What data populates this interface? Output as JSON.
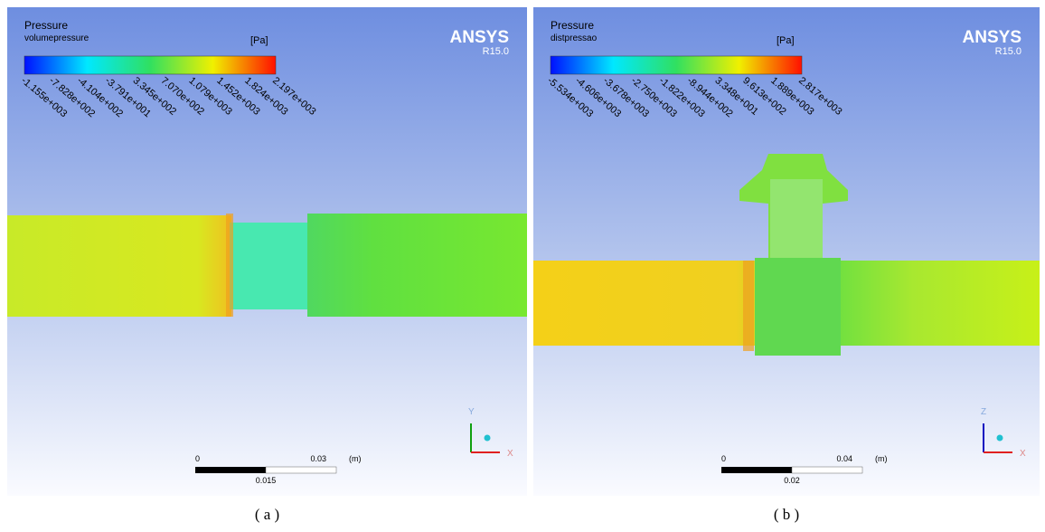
{
  "panels": [
    {
      "legend": {
        "title": "Pressure",
        "variable": "volumepressure",
        "unit": "[Pa]",
        "ticks": [
          "-1.155e+003",
          "-7.828e+002",
          "-4.104e+002",
          "-3.791e+001",
          "3.345e+002",
          "7.070e+002",
          "1.079e+003",
          "1.452e+003",
          "1.824e+003",
          "2.197e+003"
        ]
      },
      "brand": "ANSYS",
      "version": "R15.0",
      "scale": {
        "start": "0",
        "end": "0.03",
        "unit": "(m)",
        "mid": "0.015"
      },
      "axes": {
        "up": "Y",
        "right": "X"
      },
      "caption": "( a )"
    },
    {
      "legend": {
        "title": "Pressure",
        "variable": "distpressao",
        "unit": "[Pa]",
        "ticks": [
          "-5.534e+003",
          "-4.606e+003",
          "-3.678e+003",
          "-2.750e+003",
          "-1.822e+003",
          "-8.944e+002",
          "3.348e+001",
          "9.613e+002",
          "1.889e+003",
          "2.817e+003"
        ]
      },
      "brand": "ANSYS",
      "version": "R15.0",
      "scale": {
        "start": "0",
        "end": "0.04",
        "unit": "(m)",
        "mid": "0.02"
      },
      "axes": {
        "up": "Z",
        "right": "X"
      },
      "caption": "( b )"
    }
  ]
}
